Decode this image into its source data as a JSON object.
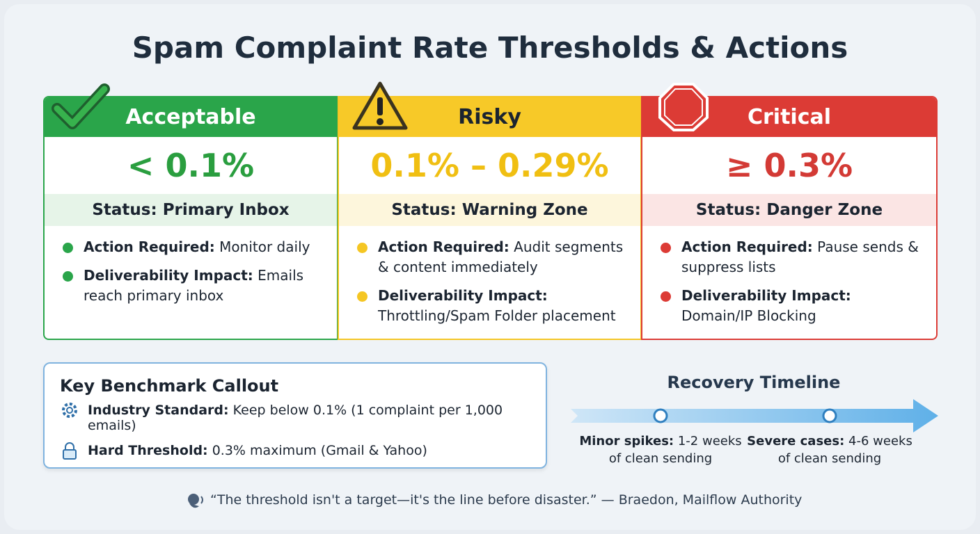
{
  "title": "Spam Complaint Rate Thresholds & Actions",
  "tiers": [
    {
      "name": "Acceptable",
      "range": "< 0.1%",
      "status": "Status: Primary Inbox",
      "items": [
        {
          "label": "Action Required:",
          "text": "Monitor daily"
        },
        {
          "label": "Deliverability Impact:",
          "text": "Emails reach primary inbox"
        }
      ]
    },
    {
      "name": "Risky",
      "range": "0.1% – 0.29%",
      "status": "Status: Warning Zone",
      "items": [
        {
          "label": "Action Required:",
          "text": "Audit segments & content immediately"
        },
        {
          "label": "Deliverability Impact:",
          "text": "Throttling/Spam Folder placement"
        }
      ]
    },
    {
      "name": "Critical",
      "range": "≥ 0.3%",
      "status": "Status: Danger Zone",
      "items": [
        {
          "label": "Action Required:",
          "text": "Pause sends & suppress lists"
        },
        {
          "label": "Deliverability Impact:",
          "text": "Domain/IP Blocking"
        }
      ]
    }
  ],
  "benchmark": {
    "title": "Key Benchmark Callout",
    "items": [
      {
        "label": "Industry Standard:",
        "text": "Keep below 0.1% (1 complaint per 1,000 emails)"
      },
      {
        "label": "Hard Threshold:",
        "text": "0.3% maximum (Gmail & Yahoo)"
      }
    ]
  },
  "timeline": {
    "title": "Recovery Timeline",
    "steps": [
      {
        "label": "Minor spikes:",
        "text": "1-2 weeks of clean sending"
      },
      {
        "label": "Severe cases:",
        "text": "4-6 weeks of clean sending"
      }
    ]
  },
  "quote": "“The threshold isn't a target—it's the line before disaster.” — Braedon, Mailflow Authority"
}
